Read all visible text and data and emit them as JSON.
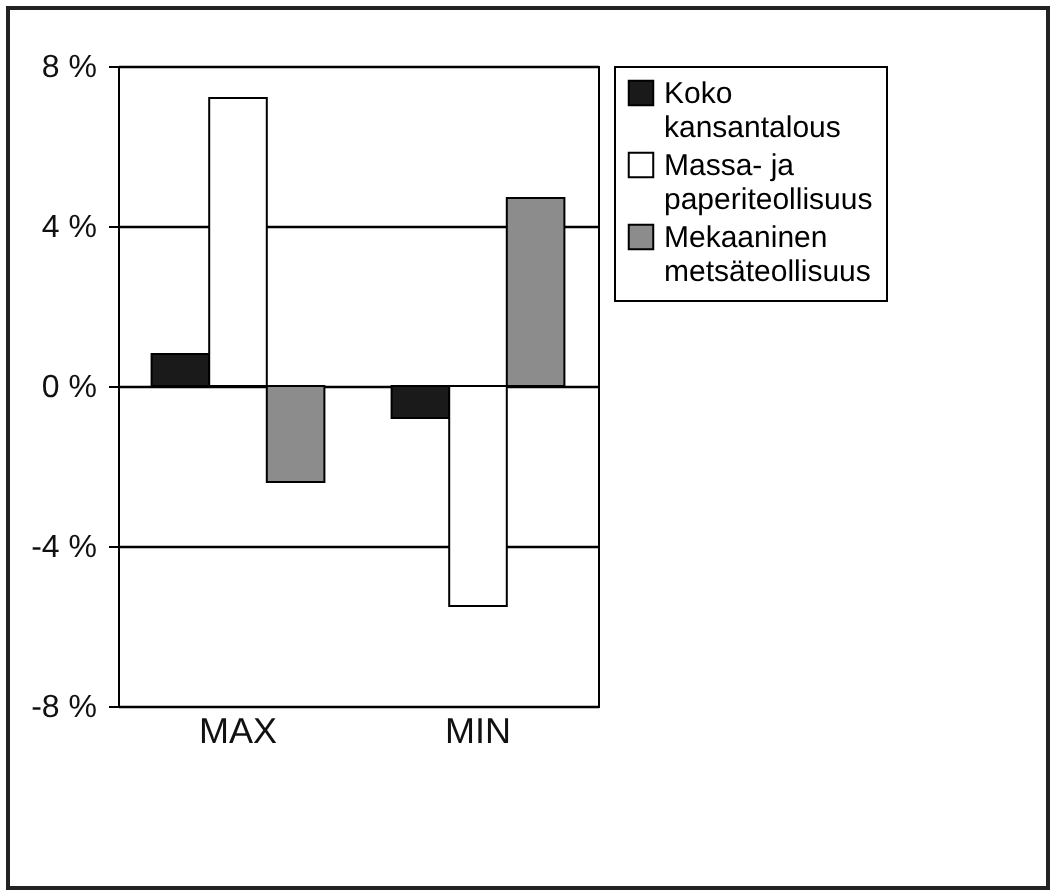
{
  "chart_data": {
    "type": "bar",
    "categories": [
      "MAX",
      "MIN"
    ],
    "series": [
      {
        "name": "Koko kansantalous",
        "color": "#1a1a1a",
        "values": [
          0.8,
          -0.8
        ]
      },
      {
        "name": "Massa- ja paperiteollisuus",
        "color": "#ffffff",
        "values": [
          7.2,
          -5.5
        ]
      },
      {
        "name": "Mekaaninen metsäteollisuus",
        "color": "#8c8c8c",
        "values": [
          -2.4,
          4.7
        ]
      }
    ],
    "ylim": [
      -8,
      8
    ],
    "yticks": [
      {
        "value": -8,
        "label": "-8 %"
      },
      {
        "value": -4,
        "label": "-4 %"
      },
      {
        "value": 0,
        "label": "0 %"
      },
      {
        "value": 4,
        "label": "4 %"
      },
      {
        "value": 8,
        "label": "8 %"
      }
    ],
    "grid": "y",
    "legend": "top right"
  }
}
